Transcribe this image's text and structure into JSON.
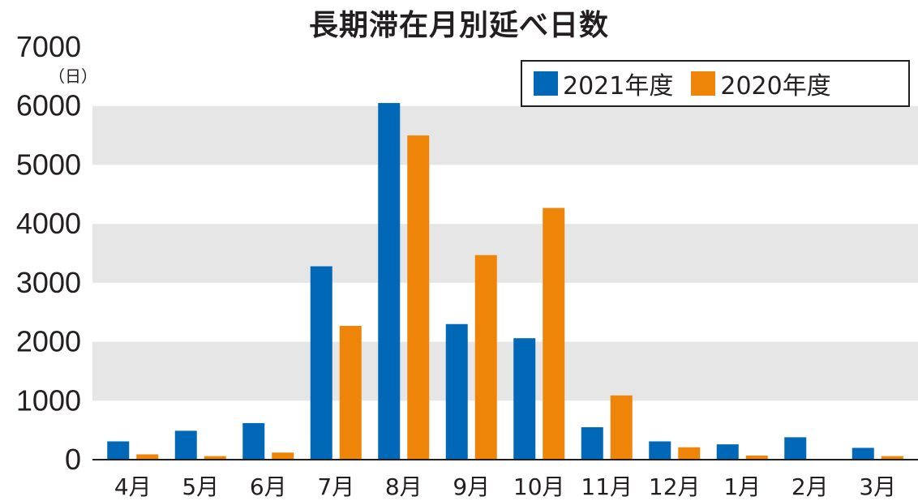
{
  "chart_data": {
    "type": "bar",
    "title": "長期滞在月別延べ日数",
    "unit": "（日）",
    "categories": [
      "4月",
      "5月",
      "6月",
      "7月",
      "8月",
      "9月",
      "10月",
      "11月",
      "12月",
      "1月",
      "2月",
      "3月"
    ],
    "series": [
      {
        "name": "2021年度",
        "color": "#0068b7",
        "values": [
          310,
          490,
          620,
          3280,
          6050,
          2300,
          2060,
          550,
          310,
          260,
          380,
          200
        ]
      },
      {
        "name": "2020年度",
        "color": "#ee8508",
        "values": [
          90,
          60,
          120,
          2270,
          5500,
          3470,
          4270,
          1090,
          210,
          70,
          0,
          60
        ]
      }
    ],
    "ylim": [
      0,
      7000
    ],
    "yticks": [
      "0",
      "1000",
      "2000",
      "3000",
      "4000",
      "5000",
      "6000",
      "7000"
    ],
    "xlabel": "",
    "ylabel": "",
    "grid": "alternating-bands",
    "band_color": "#e6e6e7",
    "legend_position": "top-right"
  }
}
